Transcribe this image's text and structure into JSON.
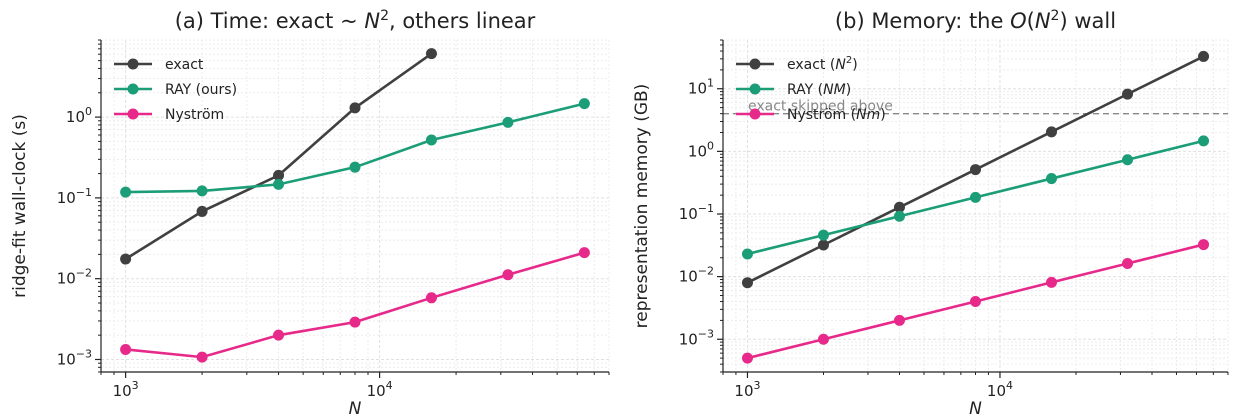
{
  "chart_data": [
    {
      "type": "line",
      "title": "(a) Time: exact ~N², others linear",
      "title_parts": {
        "pre": "(a) Time: exact ",
        "tilde": "~",
        "var": "N",
        "sup": "2",
        "post": ", others linear"
      },
      "xlabel": "N",
      "ylabel": "ridge-fit wall-clock (s)",
      "xscale": "log",
      "yscale": "log",
      "xlim": [
        800,
        80000
      ],
      "ylim": [
        0.0007,
        9
      ],
      "xticks": [
        {
          "base": "10",
          "exp": "3"
        },
        {
          "base": "10",
          "exp": "4"
        }
      ],
      "yticks": [
        {
          "base": "10",
          "exp": "−3"
        },
        {
          "base": "10",
          "exp": "−2"
        },
        {
          "base": "10",
          "exp": "−1"
        },
        {
          "base": "10",
          "exp": "0"
        }
      ],
      "grid": true,
      "legend_position": "top-left",
      "series": [
        {
          "name": "exact",
          "color": "#404040",
          "x": [
            1000,
            2000,
            4000,
            8000,
            16000
          ],
          "y": [
            0.0175,
            0.068,
            0.19,
            1.3,
            6.1
          ]
        },
        {
          "name": "RAY (ours)",
          "color": "#1b9e77",
          "x": [
            1000,
            2000,
            4000,
            8000,
            16000,
            32000,
            64000
          ],
          "y": [
            0.118,
            0.122,
            0.147,
            0.24,
            0.52,
            0.86,
            1.47
          ]
        },
        {
          "name": "Nyström",
          "color": "#e7298a",
          "x": [
            1000,
            2000,
            4000,
            8000,
            16000,
            32000,
            64000
          ],
          "y": [
            0.00133,
            0.00107,
            0.002,
            0.0029,
            0.0058,
            0.0112,
            0.021
          ]
        }
      ]
    },
    {
      "type": "line",
      "title": "(b) Memory: the O(N²) wall",
      "title_parts": {
        "pre": "(b) Memory: the ",
        "var": "O",
        "mid": "(",
        "var2": "N",
        "sup": "2",
        "post": ") wall"
      },
      "xlabel": "N",
      "ylabel": "representation memory (GB)",
      "xscale": "log",
      "yscale": "log",
      "xlim": [
        800,
        80000
      ],
      "ylim": [
        0.0003,
        60
      ],
      "xticks": [
        {
          "base": "10",
          "exp": "3"
        },
        {
          "base": "10",
          "exp": "4"
        }
      ],
      "yticks": [
        {
          "base": "10",
          "exp": "−3"
        },
        {
          "base": "10",
          "exp": "−2"
        },
        {
          "base": "10",
          "exp": "−1"
        },
        {
          "base": "10",
          "exp": "0"
        },
        {
          "base": "10",
          "exp": "1"
        }
      ],
      "grid": true,
      "legend_position": "top-left",
      "annotation": {
        "text": "exact skipped above",
        "y": 4
      },
      "series": [
        {
          "name": "exact (N²)",
          "label_pre": "exact (",
          "label_var": "N",
          "label_sup": "2",
          "label_post": ")",
          "color": "#404040",
          "x": [
            1000,
            2000,
            4000,
            8000,
            16000,
            32000,
            64000
          ],
          "y": [
            0.008,
            0.032,
            0.128,
            0.512,
            2.05,
            8.2,
            32.8
          ]
        },
        {
          "name": "RAY (NM)",
          "label_pre": "RAY (",
          "label_var": "NM",
          "label_post": ")",
          "color": "#1b9e77",
          "x": [
            1000,
            2000,
            4000,
            8000,
            16000,
            32000,
            64000
          ],
          "y": [
            0.023,
            0.046,
            0.092,
            0.184,
            0.368,
            0.736,
            1.47
          ]
        },
        {
          "name": "Nyström (Nm)",
          "label_pre": "Nyström (",
          "label_var": "Nm",
          "label_post": ")",
          "color": "#e7298a",
          "x": [
            1000,
            2000,
            4000,
            8000,
            16000,
            32000,
            64000
          ],
          "y": [
            0.0005,
            0.001,
            0.002,
            0.004,
            0.0081,
            0.0162,
            0.0325
          ]
        }
      ]
    }
  ]
}
